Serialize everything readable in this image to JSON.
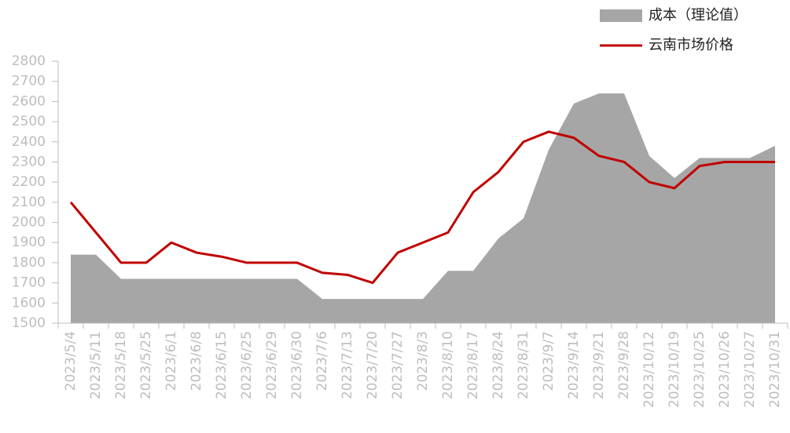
{
  "chart_data": {
    "type": "area-line",
    "categories": [
      "2023/5/4",
      "2023/5/11",
      "2023/5/18",
      "2023/5/25",
      "2023/6/1",
      "2023/6/8",
      "2023/6/15",
      "2023/6/25",
      "2023/6/29",
      "2023/6/30",
      "2023/7/6",
      "2023/7/13",
      "2023/7/20",
      "2023/7/27",
      "2023/8/3",
      "2023/8/10",
      "2023/8/17",
      "2023/8/24",
      "2023/8/31",
      "2023/9/7",
      "2023/9/14",
      "2023/9/21",
      "2023/9/28",
      "2023/10/12",
      "2023/10/19",
      "2023/10/25",
      "2023/10/26",
      "2023/10/27",
      "2023/10/31"
    ],
    "series": [
      {
        "name": "成本（理论值）",
        "kind": "area",
        "color": "#a6a6a6",
        "values": [
          1840,
          1840,
          1720,
          1720,
          1720,
          1720,
          1720,
          1720,
          1720,
          1720,
          1620,
          1620,
          1620,
          1620,
          1620,
          1760,
          1760,
          1920,
          2020,
          2360,
          2590,
          2640,
          2640,
          2330,
          2220,
          2320,
          2320,
          2320,
          2380
        ]
      },
      {
        "name": "云南市场价格",
        "kind": "line",
        "color": "#c00000",
        "values": [
          2100,
          1950,
          1800,
          1800,
          1900,
          1850,
          1830,
          1800,
          1800,
          1800,
          1750,
          1740,
          1700,
          1850,
          1900,
          1950,
          2150,
          2250,
          2400,
          2450,
          2420,
          2330,
          2300,
          2200,
          2170,
          2280,
          2300,
          2300,
          2300
        ]
      }
    ],
    "ylim": [
      1500,
      2800
    ],
    "yticks": [
      1500,
      1600,
      1700,
      1800,
      1900,
      2000,
      2100,
      2200,
      2300,
      2400,
      2500,
      2600,
      2700,
      2800
    ],
    "legend": "top-right"
  }
}
